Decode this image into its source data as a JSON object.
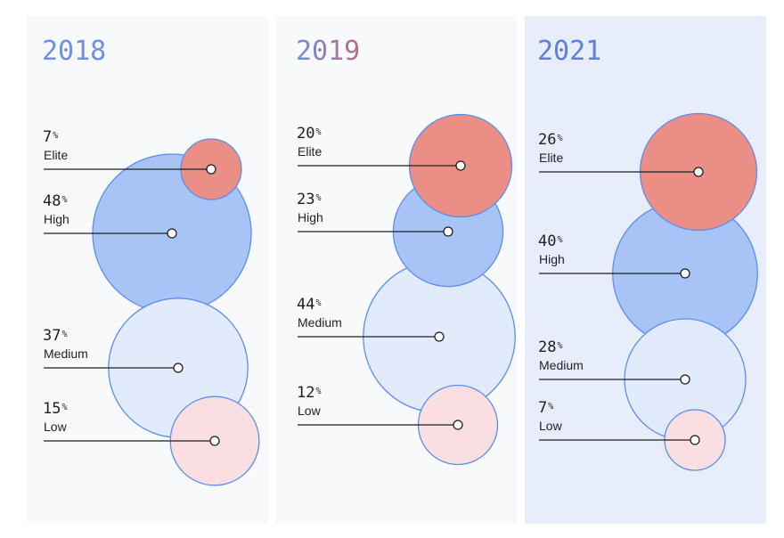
{
  "chart_data": {
    "type": "bubble",
    "percent_sign": "%",
    "colors": {
      "Elite": {
        "fill": "#ea8e86",
        "stroke": "#5b8def"
      },
      "High": {
        "fill": "#a8c4f6",
        "stroke": "#5b8def"
      },
      "Medium": {
        "fill": "#e2ebfb",
        "stroke": "#5b8def"
      },
      "Low": {
        "fill": "#f9dfe2",
        "stroke": "#5b8def"
      }
    },
    "panels": [
      {
        "year": "2018",
        "year_color": "#6f8fe0",
        "background": "#f8f9fa",
        "series": [
          {
            "tier": "Elite",
            "value": 7
          },
          {
            "tier": "High",
            "value": 48
          },
          {
            "tier": "Medium",
            "value": 37
          },
          {
            "tier": "Low",
            "value": 15
          }
        ]
      },
      {
        "year": "2019",
        "year_color": "#7a8fd6",
        "background": "#f8f9fa",
        "series": [
          {
            "tier": "Elite",
            "value": 20
          },
          {
            "tier": "High",
            "value": 23
          },
          {
            "tier": "Medium",
            "value": 44
          },
          {
            "tier": "Low",
            "value": 12
          }
        ]
      },
      {
        "year": "2021",
        "year_color": "#5f7fd9",
        "background": "#e8edfb",
        "series": [
          {
            "tier": "Elite",
            "value": 26
          },
          {
            "tier": "High",
            "value": 40
          },
          {
            "tier": "Medium",
            "value": 28
          },
          {
            "tier": "Low",
            "value": 7
          }
        ]
      }
    ]
  }
}
